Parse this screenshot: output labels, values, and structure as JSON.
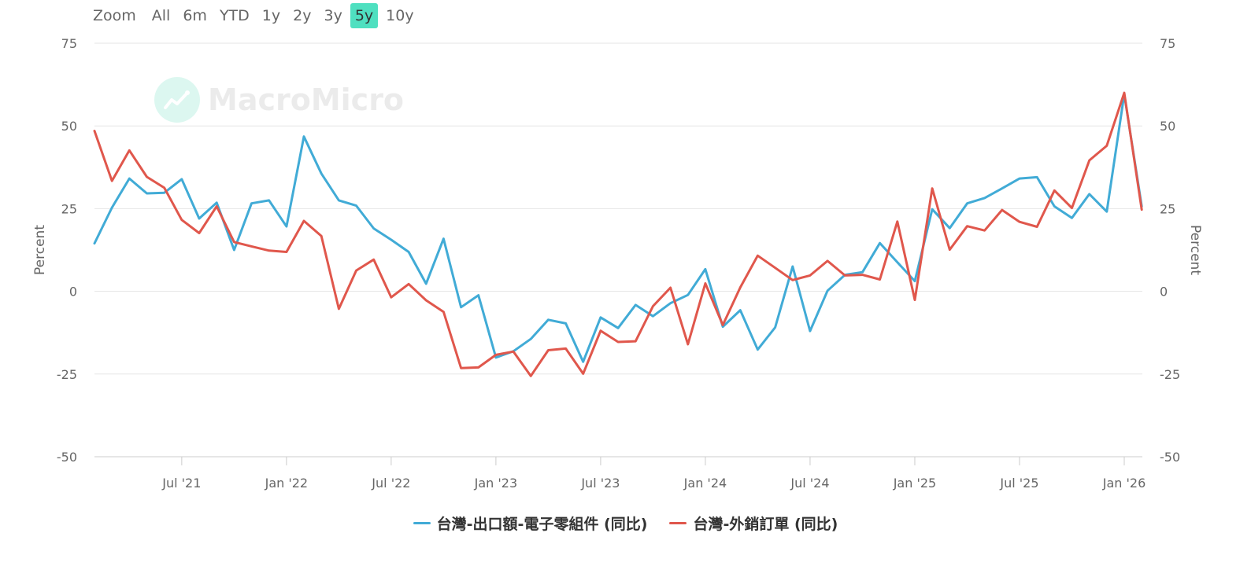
{
  "zoom": {
    "label": "Zoom",
    "buttons": [
      "All",
      "6m",
      "YTD",
      "1y",
      "2y",
      "3y",
      "5y",
      "10y"
    ],
    "active": "5y",
    "active_color": "#4fe0c0"
  },
  "watermark": {
    "text": "MacroMicro",
    "icon": "chart-logo-icon"
  },
  "chart_data": {
    "type": "line",
    "x_ticks": [
      "Jul '21",
      "Jan '22",
      "Jul '22",
      "Jan '23",
      "Jul '23",
      "Jan '24",
      "Jul '24",
      "Jan '25",
      "Jul '25",
      "Jan '26"
    ],
    "y_ticks": [
      75,
      50,
      25,
      0,
      -25,
      -50
    ],
    "ylim": [
      -50,
      75
    ],
    "ylabel_left": "Percent",
    "ylabel_right": "Percent",
    "grid": true,
    "legend_position": "bottom-center",
    "x_start": "2021-02",
    "series": [
      {
        "name": "台灣-出口額-電子零組件 (同比)",
        "color": "#41abd6",
        "values": [
          14.5,
          25.3,
          34.1,
          29.6,
          29.8,
          33.9,
          22.0,
          26.8,
          12.5,
          26.6,
          27.5,
          19.6,
          46.8,
          35.6,
          27.5,
          25.9,
          19.0,
          15.6,
          11.9,
          2.3,
          15.9,
          -4.8,
          -1.2,
          -20.0,
          -18.1,
          -14.4,
          -8.6,
          -9.7,
          -21.3,
          -7.9,
          -11.1,
          -4.1,
          -7.5,
          -3.6,
          -1.1,
          6.7,
          -10.7,
          -5.7,
          -17.6,
          -10.9,
          7.5,
          -12.0,
          0.2,
          5.0,
          5.8,
          14.6,
          8.8,
          3.1,
          24.8,
          19.1,
          26.6,
          28.2,
          31.1,
          34.1,
          34.5,
          25.7,
          22.2,
          29.4,
          24.1,
          59.6,
          25.7
        ]
      },
      {
        "name": "台灣-外銷訂單 (同比)",
        "color": "#e0574c",
        "values": [
          48.5,
          33.4,
          42.6,
          34.6,
          31.3,
          21.6,
          17.6,
          25.7,
          14.9,
          13.6,
          12.3,
          11.9,
          21.3,
          16.7,
          -5.3,
          6.3,
          9.6,
          -1.8,
          2.2,
          -2.7,
          -6.2,
          -23.2,
          -23.0,
          -19.2,
          -18.2,
          -25.6,
          -17.8,
          -17.3,
          -24.9,
          -11.9,
          -15.3,
          -15.1,
          -4.5,
          1.1,
          -16.0,
          2.4,
          -10.2,
          1.2,
          10.8,
          7.1,
          3.4,
          4.8,
          9.2,
          4.8,
          5.0,
          3.6,
          21.1,
          -2.6,
          31.1,
          12.6,
          19.7,
          18.4,
          24.6,
          21.0,
          19.5,
          30.5,
          25.2,
          39.6,
          44.0,
          60.0,
          24.7
        ]
      }
    ]
  }
}
